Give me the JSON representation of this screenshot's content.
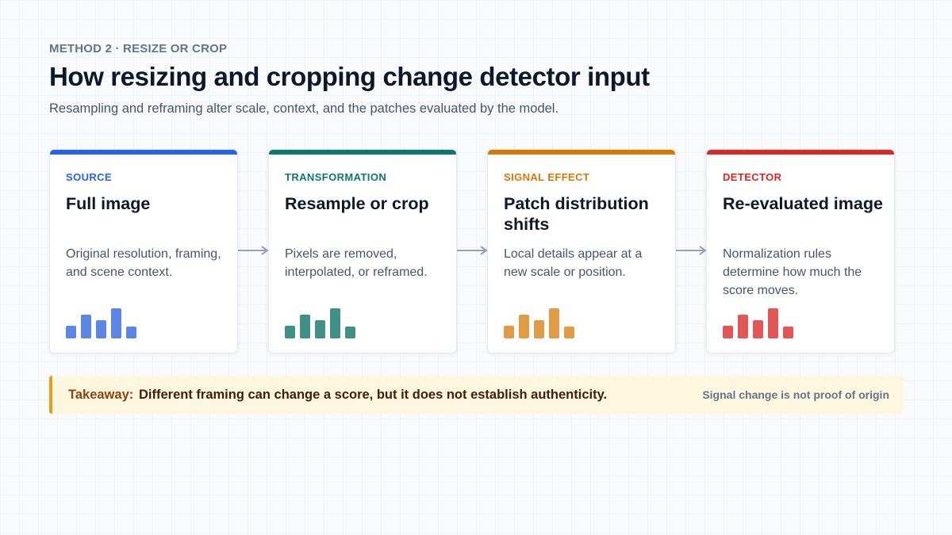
{
  "header": {
    "eyebrow": "METHOD 2 · RESIZE OR CROP",
    "title": "How resizing and cropping change detector input",
    "subtitle": "Resampling and reframing alter scale, context, and the patches evaluated by the model."
  },
  "steps": [
    {
      "kicker": "SOURCE",
      "title": "Full image",
      "description": "Original resolution, framing, and scene context.",
      "accent": "#2563eb",
      "bar_color": "#5b86e5"
    },
    {
      "kicker": "TRANSFORMATION",
      "title": "Resample or crop",
      "description": "Pixels are removed, interpolated, or reframed.",
      "accent": "#0f766e",
      "bar_color": "#3f9186"
    },
    {
      "kicker": "SIGNAL EFFECT",
      "title": "Patch distribution shifts",
      "description": "Local details appear at a new scale or position.",
      "accent": "#d97706",
      "bar_color": "#e29b45"
    },
    {
      "kicker": "DETECTOR",
      "title": "Re-evaluated image",
      "description": "Normalization rules determine how much the score moves.",
      "accent": "#dc2626",
      "bar_color": "#e35656"
    }
  ],
  "mini_bars": [
    0.42,
    0.79,
    0.61,
    1.0,
    0.39
  ],
  "connector_color": "#94a3b8",
  "takeaway": {
    "label": "Takeaway:",
    "text": "Different framing can change a score, but it does not establish authenticity.",
    "note": "Signal change is not proof of origin"
  }
}
